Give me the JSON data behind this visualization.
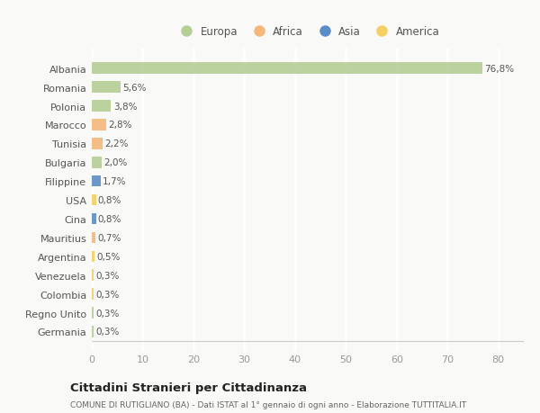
{
  "categories": [
    "Albania",
    "Romania",
    "Polonia",
    "Marocco",
    "Tunisia",
    "Bulgaria",
    "Filippine",
    "USA",
    "Cina",
    "Mauritius",
    "Argentina",
    "Venezuela",
    "Colombia",
    "Regno Unito",
    "Germania"
  ],
  "values": [
    76.8,
    5.6,
    3.8,
    2.8,
    2.2,
    2.0,
    1.7,
    0.8,
    0.8,
    0.7,
    0.5,
    0.3,
    0.3,
    0.3,
    0.3
  ],
  "labels": [
    "76,8%",
    "5,6%",
    "3,8%",
    "2,8%",
    "2,2%",
    "2,0%",
    "1,7%",
    "0,8%",
    "0,8%",
    "0,7%",
    "0,5%",
    "0,3%",
    "0,3%",
    "0,3%",
    "0,3%"
  ],
  "colors": [
    "#b5ce96",
    "#b5ce96",
    "#b5ce96",
    "#f5b87a",
    "#f5b87a",
    "#b5ce96",
    "#5b8ec4",
    "#f5d060",
    "#5b8ec4",
    "#f5b87a",
    "#f5d060",
    "#f5d060",
    "#f5d060",
    "#b5ce96",
    "#b5ce96"
  ],
  "continent_labels": [
    "Europa",
    "Africa",
    "Asia",
    "America"
  ],
  "continent_colors": [
    "#b5ce96",
    "#f5b87a",
    "#5b8ec4",
    "#f5d060"
  ],
  "title": "Cittadini Stranieri per Cittadinanza",
  "subtitle": "COMUNE DI RUTIGLIANO (BA) - Dati ISTAT al 1° gennaio di ogni anno - Elaborazione TUTTITALIA.IT",
  "xlim": [
    0,
    85
  ],
  "xticks": [
    0,
    10,
    20,
    30,
    40,
    50,
    60,
    70,
    80
  ],
  "background_color": "#f9f9f7",
  "plot_bg_color": "#f9f9f7",
  "grid_color": "#ffffff",
  "bar_height": 0.6,
  "bar_alpha": 0.9
}
